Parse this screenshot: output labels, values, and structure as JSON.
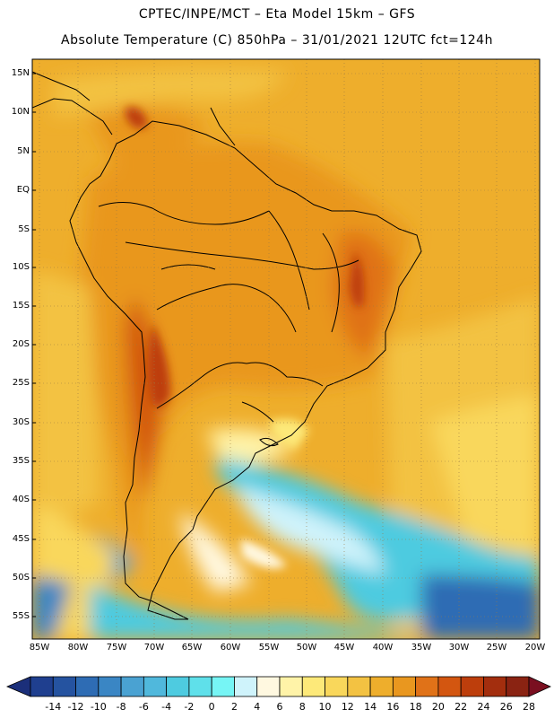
{
  "title_line1": "CPTEC/INPE/MCT –  Eta Model 15km – GFS",
  "title_line2": "Absolute Temperature (C) 850hPa – 31/01/2021 12UTC fct=124h",
  "lat_labels": [
    "15N",
    "10N",
    "5N",
    "EQ",
    "5S",
    "10S",
    "15S",
    "20S",
    "25S",
    "30S",
    "35S",
    "40S",
    "45S",
    "50S",
    "55S"
  ],
  "lon_labels": [
    "85W",
    "80W",
    "75W",
    "70W",
    "65W",
    "60W",
    "55W",
    "50W",
    "45W",
    "40W",
    "35W",
    "30W",
    "25W",
    "20W"
  ],
  "colorbar": {
    "labels": [
      "-14",
      "-12",
      "-10",
      "-8",
      "-6",
      "-4",
      "-2",
      "0",
      "2",
      "4",
      "6",
      "8",
      "10",
      "12",
      "14",
      "16",
      "18",
      "20",
      "22",
      "24",
      "26",
      "28"
    ],
    "colors": [
      "#1f3f8f",
      "#2553a0",
      "#2e6cb4",
      "#3a86c4",
      "#4aa2d2",
      "#50b8dc",
      "#4ecbe0",
      "#5fe0ea",
      "#76f5f5",
      "#cff3fb",
      "#fff8e0",
      "#fff3a8",
      "#fde979",
      "#f9d75b",
      "#f3c242",
      "#eeae2c",
      "#e9971f",
      "#e07218",
      "#d35610",
      "#bd3e0c",
      "#a32e0e",
      "#8a2312"
    ],
    "left_arrow_color": "#1b2f7a",
    "right_arrow_color": "#7a0f20"
  }
}
